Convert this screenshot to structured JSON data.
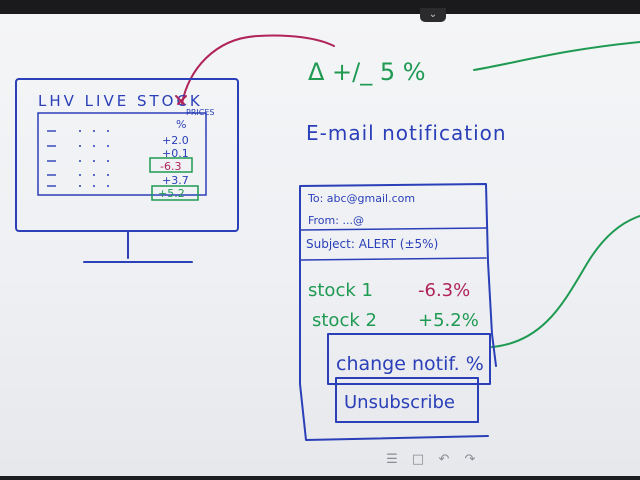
{
  "monitor": {
    "title": "LHV LIVE STOCK",
    "prices_label": "PRICES",
    "percent_header": "%",
    "rows": [
      {
        "value": "+2.0",
        "highlight": "none"
      },
      {
        "value": "+0.1",
        "highlight": "none"
      },
      {
        "value": "-6.3",
        "highlight": "red"
      },
      {
        "value": "+3.7",
        "highlight": "none"
      },
      {
        "value": "+5.2",
        "highlight": "green"
      }
    ]
  },
  "threshold": {
    "text": "Δ +/_ 5 %"
  },
  "notification": {
    "heading": "E-mail notification"
  },
  "email": {
    "to": "To: abc@gmail.com",
    "from": "From: ...@",
    "subject": "Subject: ALERT (±5%)",
    "stocks": [
      {
        "name": "stock 1",
        "change": "-6.3%",
        "color": "#b0245a"
      },
      {
        "name": "stock 2",
        "change": "+5.2%",
        "color": "#1f9a52"
      }
    ],
    "change_button": "change notif. %",
    "unsubscribe_button": "Unsubscribe"
  },
  "colors": {
    "blue_ink": "#2a3fb8",
    "green_ink": "#1f9a52",
    "red_ink": "#b0245a"
  },
  "toolbar": {
    "icons": [
      "menu-icon",
      "square-icon",
      "undo-icon",
      "redo-icon"
    ],
    "glyphs": [
      "☰",
      "□",
      "↶",
      "↷"
    ]
  },
  "collapse_tab": {
    "glyph": "⌄"
  }
}
